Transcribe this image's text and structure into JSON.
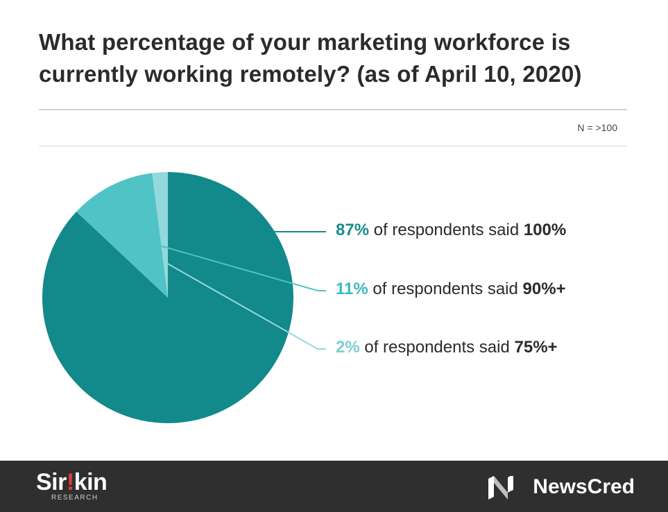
{
  "title_line1": "What percentage of your marketing workforce is",
  "title_line2": "currently working remotely? (as of April 10, 2020)",
  "sample_size": "N = >100",
  "chart_data": {
    "type": "pie",
    "slices": [
      {
        "value": 87,
        "pct_label": "87%",
        "text": "of respondents said",
        "answer": "100%",
        "color": "#12898a",
        "label_color": "#1a8c8c"
      },
      {
        "value": 11,
        "pct_label": "11%",
        "text": "of respondents said",
        "answer": "90%+",
        "color": "#4fc3c6",
        "label_color": "#3fb9bd"
      },
      {
        "value": 2,
        "pct_label": "2%",
        "text": "of respondents said",
        "answer": "75%+",
        "color": "#93d8dc",
        "label_color": "#7ccdd2"
      }
    ],
    "start": "12 o'clock",
    "direction": "clockwise"
  },
  "footer": {
    "sirkin_part1": "Sir",
    "sirkin_bang": "!",
    "sirkin_part2": "kin",
    "sirkin_sub": "RESEARCH",
    "newscred": "NewsCred"
  }
}
